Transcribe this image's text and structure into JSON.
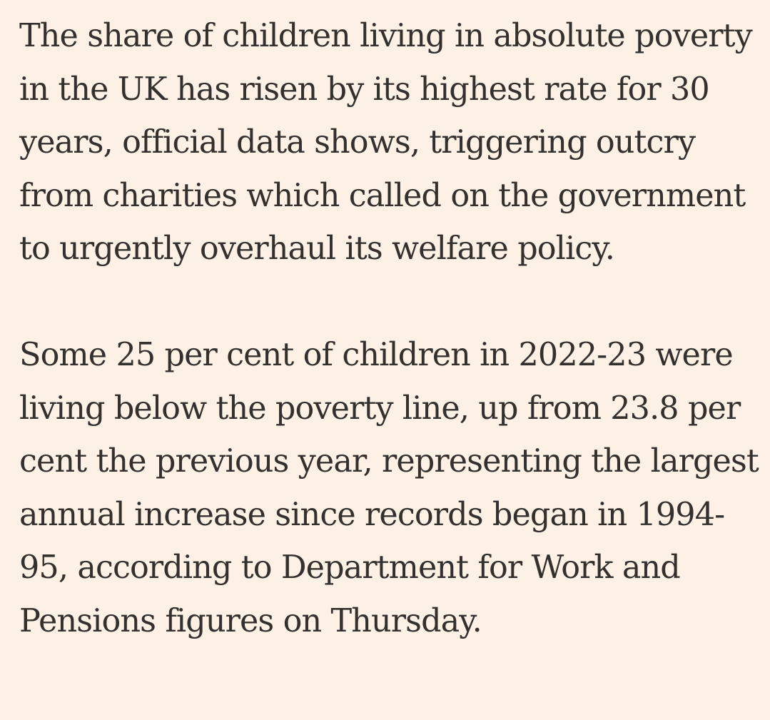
{
  "article": {
    "paragraphs": [
      "The share of children living in absolute poverty in the UK has risen by its highest rate for 30 years, official data shows, triggering outcry from charities which called on the government to urgently overhaul its welfare policy.",
      "Some 25 per cent of children in 2022-23 were living below the poverty line, up from 23.8 per cent the previous year, representing the largest annual increase since records began in 1994-95, according to Department for Work and Pensions figures on Thursday."
    ]
  },
  "colors": {
    "background": "#fdf1e6",
    "text": "#33302e"
  }
}
